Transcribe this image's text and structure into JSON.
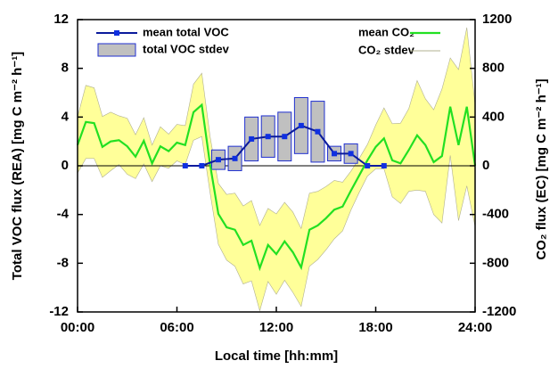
{
  "chart_data": {
    "type": "line",
    "xlabel": "Local time [hh:mm]",
    "ylabel": "Total VOC flux (REA) [mg C m⁻² h⁻¹]",
    "y2label": "CO₂ flux (EC) [mg C m⁻² h⁻¹]",
    "xlim": [
      0,
      24
    ],
    "xticks": [
      {
        "value": 0,
        "label": "00:00"
      },
      {
        "value": 6,
        "label": "06:00"
      },
      {
        "value": 12,
        "label": "12:00"
      },
      {
        "value": 18,
        "label": "18:00"
      },
      {
        "value": 24,
        "label": "24:00"
      }
    ],
    "ylim": [
      -12,
      12
    ],
    "yticks": [
      -12,
      -8,
      -4,
      0,
      4,
      8,
      12
    ],
    "y2lim": [
      -1200,
      1200
    ],
    "y2ticks": [
      -1200,
      -800,
      -400,
      0,
      400,
      800,
      1200
    ],
    "series": [
      {
        "name": "mean total VOC",
        "color": "#0a1a9c",
        "stdev_name": "total VOC stdev",
        "stdev_color": "#c0c0c0",
        "x": [
          6.5,
          7.5,
          8.5,
          9.5,
          10.5,
          11.5,
          12.5,
          13.5,
          14.5,
          15.5,
          16.5,
          17.5,
          18.5
        ],
        "values": [
          0,
          0,
          0.5,
          0.6,
          2.2,
          2.4,
          2.4,
          3.3,
          2.8,
          1.0,
          1.0,
          0,
          0
        ],
        "stdev": [
          null,
          null,
          0.8,
          1.0,
          1.8,
          1.7,
          2.0,
          2.3,
          2.5,
          0.6,
          0.8,
          null,
          null
        ]
      },
      {
        "name": "mean CO₂",
        "color": "#22e022",
        "stdev_name": "CO₂ stdev",
        "stdev_color": "#ffff99",
        "axis": "y2",
        "x": [
          0,
          0.5,
          1,
          1.5,
          2,
          2.5,
          3,
          3.5,
          4,
          4.5,
          5,
          5.5,
          6,
          6.5,
          7,
          7.5,
          8,
          8.5,
          9,
          9.5,
          10,
          10.5,
          11,
          11.5,
          12,
          12.5,
          13,
          13.5,
          14,
          14.5,
          15,
          15.5,
          16,
          16.5,
          17,
          17.5,
          18,
          18.5,
          19,
          19.5,
          20,
          20.5,
          21,
          21.5,
          22,
          22.5,
          23,
          23.5,
          24
        ],
        "values": [
          170,
          360,
          350,
          155,
          200,
          210,
          160,
          75,
          205,
          20,
          160,
          120,
          190,
          170,
          440,
          500,
          10,
          -395,
          -505,
          -525,
          -650,
          -615,
          -840,
          -650,
          -725,
          -620,
          -710,
          -835,
          -525,
          -490,
          -430,
          -360,
          -335,
          -205,
          -80,
          45,
          155,
          225,
          45,
          20,
          130,
          250,
          170,
          30,
          80,
          485,
          170,
          485,
          0
        ],
        "stdev": [
          230,
          300,
          290,
          250,
          240,
          200,
          230,
          180,
          190,
          150,
          160,
          140,
          150,
          160,
          230,
          260,
          230,
          250,
          270,
          300,
          320,
          330,
          350,
          300,
          330,
          320,
          330,
          320,
          300,
          280,
          260,
          240,
          200,
          160,
          140,
          130,
          180,
          250,
          300,
          330,
          340,
          450,
          380,
          430,
          550,
          400,
          620,
          650,
          500
        ]
      }
    ]
  }
}
